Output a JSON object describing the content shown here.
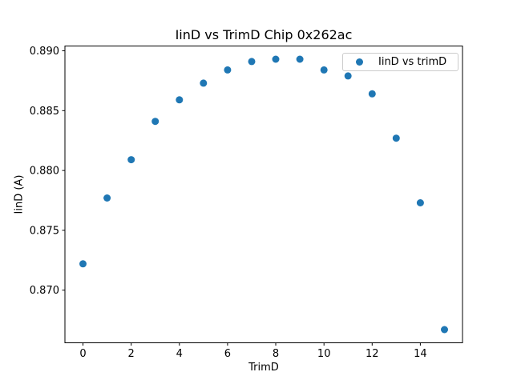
{
  "figure": {
    "background": "#ffffff"
  },
  "chart_data": {
    "type": "scatter",
    "title": "IinD vs TrimD Chip 0x262ac",
    "xlabel": "TrimD",
    "ylabel": "IinD (A)",
    "legend": [
      {
        "label": "IinD vs trimD",
        "color": "#1f77b4"
      }
    ],
    "legend_position": "upper right",
    "marker_color": "#1f77b4",
    "axis_color": "#000000",
    "text_color": "#000000",
    "grid": false,
    "x": [
      0,
      1,
      2,
      3,
      4,
      5,
      6,
      7,
      8,
      9,
      10,
      11,
      12,
      13,
      14,
      15
    ],
    "y": [
      0.8722,
      0.8777,
      0.8809,
      0.8841,
      0.8859,
      0.8873,
      0.8884,
      0.8891,
      0.8893,
      0.8893,
      0.8884,
      0.8879,
      0.8864,
      0.8827,
      0.8773,
      0.8667
    ],
    "xlim": [
      -0.75,
      15.75
    ],
    "ylim": [
      0.8656,
      0.8904
    ],
    "xticks": [
      0,
      2,
      4,
      6,
      8,
      10,
      12,
      14
    ],
    "xtick_labels": [
      "0",
      "2",
      "4",
      "6",
      "8",
      "10",
      "12",
      "14"
    ],
    "yticks": [
      0.87,
      0.875,
      0.88,
      0.885,
      0.89
    ],
    "ytick_labels": [
      "0.870",
      "0.875",
      "0.880",
      "0.885",
      "0.890"
    ]
  }
}
